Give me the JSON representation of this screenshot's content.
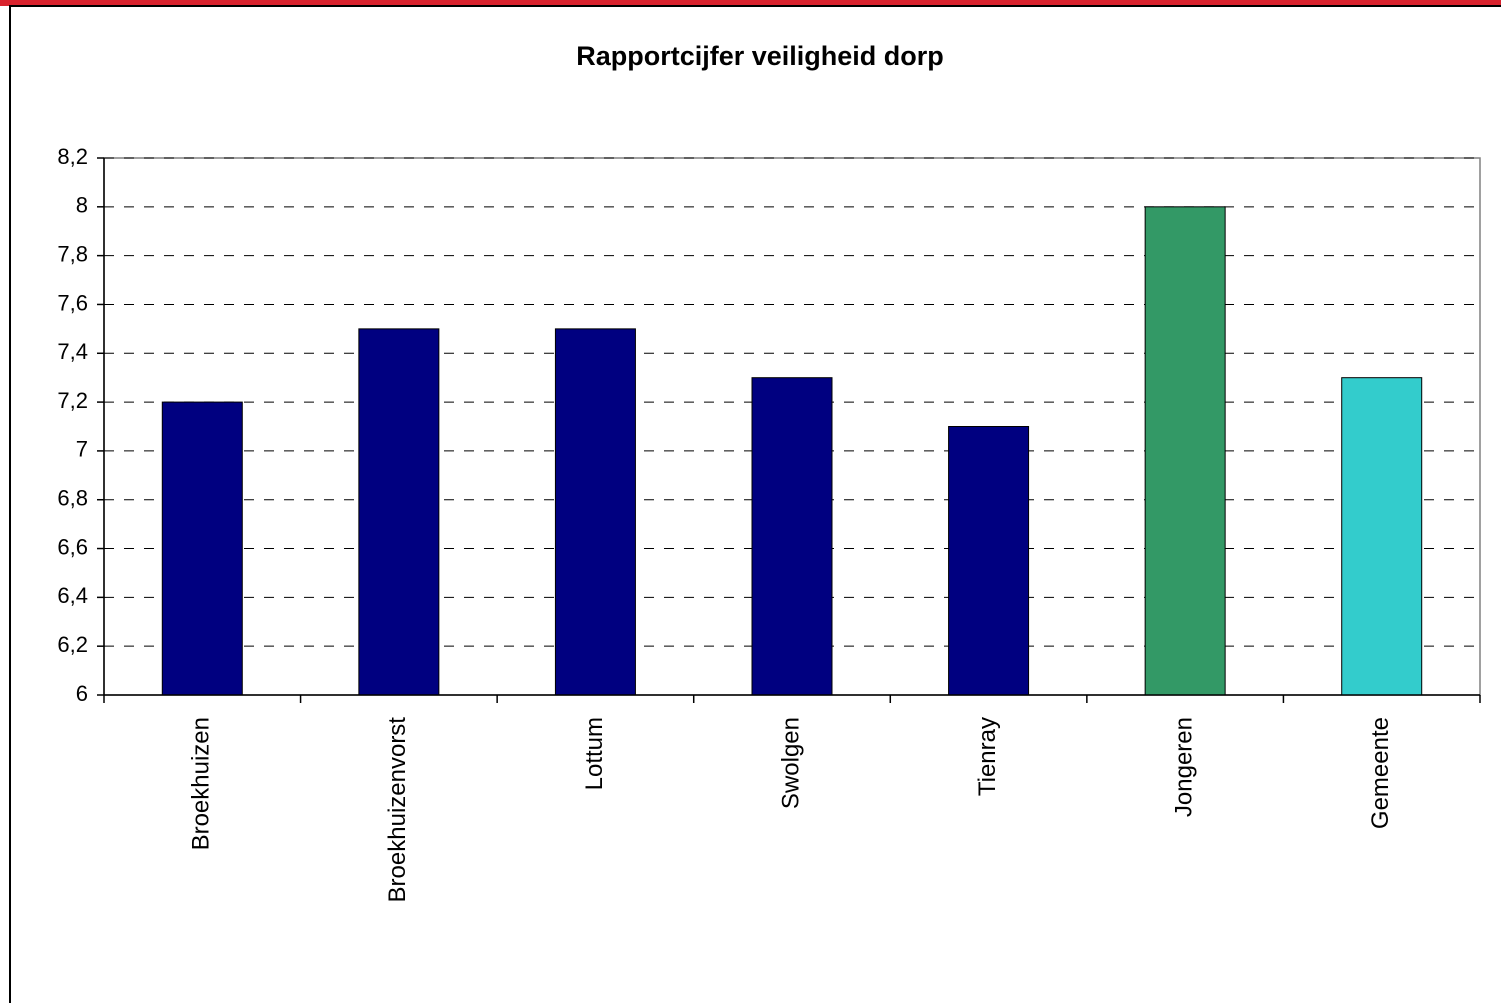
{
  "chart_data": {
    "type": "bar",
    "title": "Rapportcijfer veiligheid dorp",
    "categories": [
      "Broekhuizen",
      "Broekhuizenvorst",
      "Lottum",
      "Swolgen",
      "Tienray",
      "Jongeren",
      "Gemeente"
    ],
    "values": [
      7.2,
      7.5,
      7.5,
      7.3,
      7.1,
      8.0,
      7.3
    ],
    "colors": [
      "#000080",
      "#000080",
      "#000080",
      "#000080",
      "#000080",
      "#339966",
      "#33cccc"
    ],
    "ylim": [
      6,
      8.2
    ],
    "yticks": [
      6,
      {
        "value": 6.2,
        "label": "6,2"
      },
      {
        "value": 6.4,
        "label": "6,4"
      },
      {
        "value": 6.6,
        "label": "6,6"
      },
      {
        "value": 6.8,
        "label": "6,8"
      },
      7,
      {
        "value": 7.2,
        "label": "7,2"
      },
      {
        "value": 7.4,
        "label": "7,4"
      },
      {
        "value": 7.6,
        "label": "7,6"
      },
      {
        "value": 7.8,
        "label": "7,8"
      },
      8,
      {
        "value": 8.2,
        "label": "8,2"
      }
    ],
    "grid": true
  }
}
